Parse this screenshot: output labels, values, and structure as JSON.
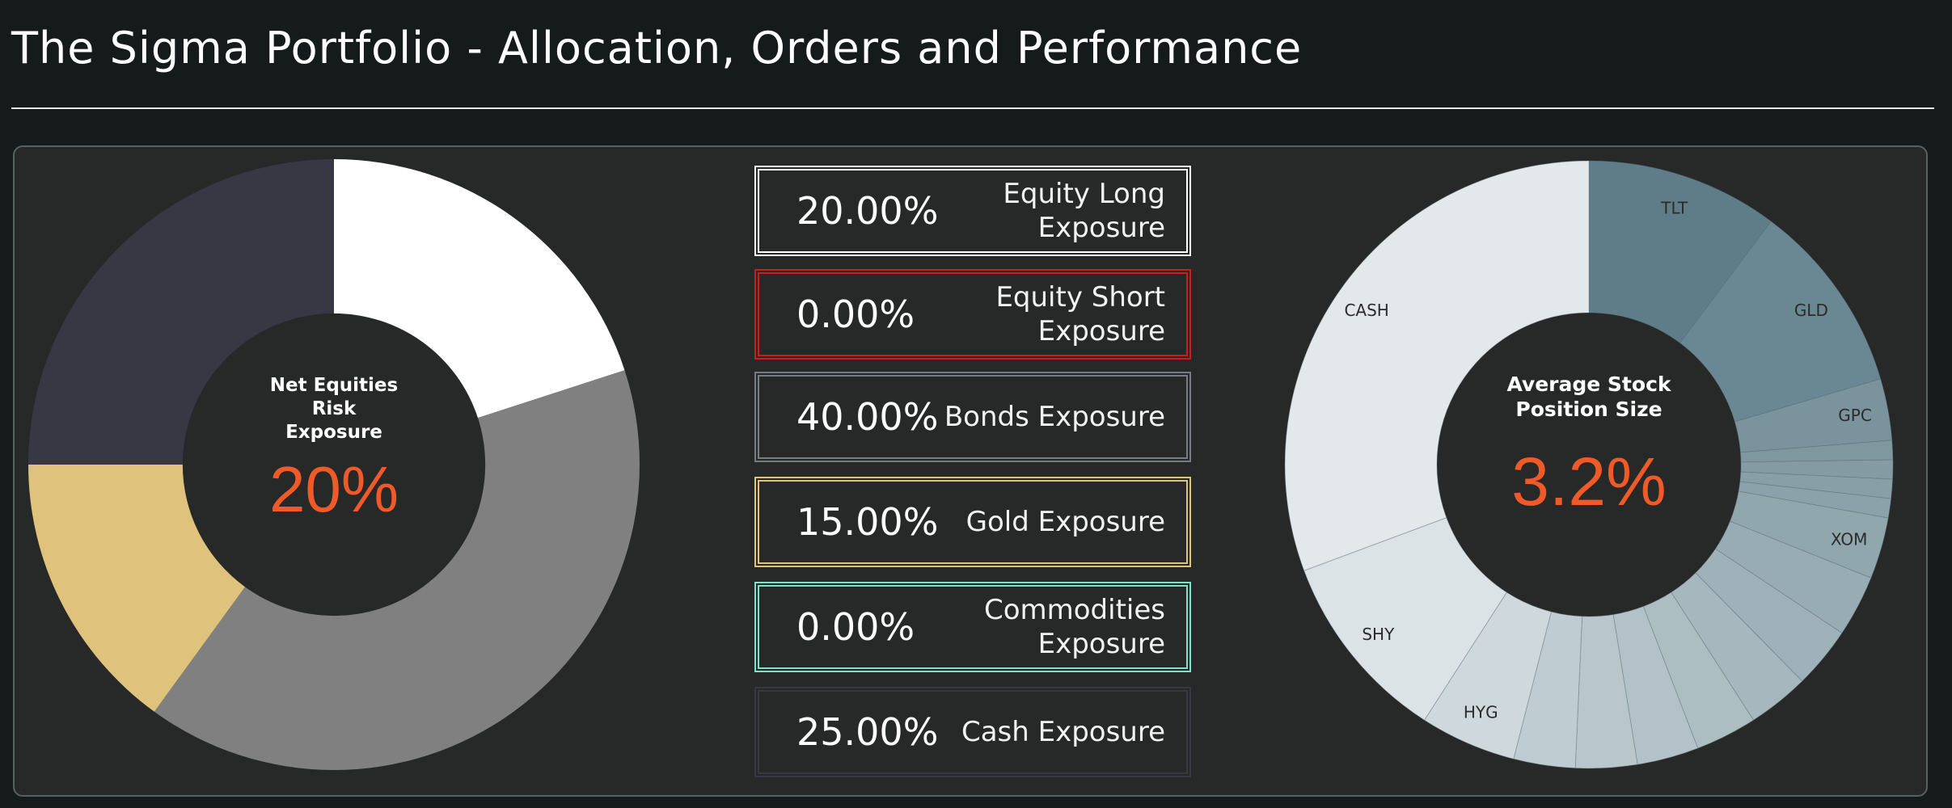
{
  "page": {
    "title": "The Sigma Portfolio - Allocation, Orders and Performance"
  },
  "left_donut": {
    "center_label": "Net Equities\nRisk\nExposure",
    "center_value": "20%"
  },
  "exposures": [
    {
      "value": "20.00%",
      "label": "Equity Long\nExposure",
      "color": "#ffffff"
    },
    {
      "value": "0.00%",
      "label": "Equity Short\nExposure",
      "color": "#d01c1c"
    },
    {
      "value": "40.00%",
      "label": "Bonds Exposure",
      "color": "#777b84"
    },
    {
      "value": "15.00%",
      "label": "Gold Exposure",
      "color": "#e0c27a"
    },
    {
      "value": "0.00%",
      "label": "Commodities\nExposure",
      "color": "#7fe0c8"
    },
    {
      "value": "25.00%",
      "label": "Cash Exposure",
      "color": "#383844"
    }
  ],
  "right_donut": {
    "center_label": "Average Stock\nPosition Size",
    "center_value": "3.2%"
  },
  "chart_data": [
    {
      "type": "pie",
      "categories": [
        "Equity Long",
        "Bonds",
        "Gold",
        "Cash"
      ],
      "values": [
        20,
        40,
        15,
        25
      ],
      "colors": [
        "#ffffff",
        "#808080",
        "#dfc27b",
        "#383844"
      ]
    },
    {
      "type": "pie",
      "categories": [
        "TLT",
        "GLD",
        "GPC",
        "",
        "",
        "",
        "",
        "XOM",
        "",
        "",
        "",
        "",
        "",
        "",
        "",
        "HYG",
        "SHY",
        "CASH"
      ],
      "values": [
        10,
        10,
        3.2,
        1,
        1,
        1,
        1,
        3.2,
        3.2,
        3.2,
        3.2,
        3.2,
        3.2,
        3.2,
        3.2,
        5,
        10,
        30
      ],
      "colors": [
        "#5e7d89",
        "#6a8893",
        "#7a939c",
        "#7f979f",
        "#849ba3",
        "#889fa7",
        "#8ca2aa",
        "#90a7ae",
        "#98acb3",
        "#9fb2b9",
        "#a6b8be",
        "#adbec3",
        "#b3c2c8",
        "#b9c7cc",
        "#bfccd1",
        "#cfd8dc",
        "#dce3e6",
        "#e3e8eb"
      ]
    }
  ]
}
